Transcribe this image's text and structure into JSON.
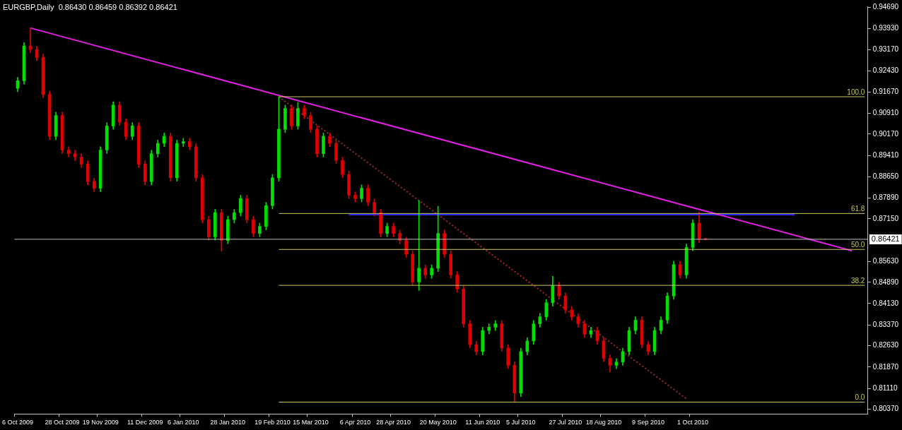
{
  "chart_data": {
    "type": "candlestick",
    "title": "EURGBP,Daily  0.86430 0.86459 0.86392 0.86421",
    "categories": [
      "6 Oct 2009",
      null,
      null,
      null,
      null,
      null,
      null,
      "28 Oct 2009",
      null,
      null,
      null,
      null,
      null,
      "19 Nov 2009",
      null,
      null,
      null,
      null,
      null,
      null,
      "11 Dec 2009",
      null,
      null,
      null,
      null,
      null,
      "6 Jan 2010",
      null,
      null,
      null,
      null,
      null,
      null,
      "28 Jan 2010",
      null,
      null,
      null,
      null,
      null,
      null,
      "19 Feb 2010",
      null,
      null,
      null,
      null,
      null,
      "15 Mar 2010",
      null,
      null,
      null,
      null,
      null,
      null,
      "6 Apr 2010",
      null,
      null,
      null,
      null,
      null,
      "28 Apr 2010",
      null,
      null,
      null,
      null,
      null,
      null,
      "20 May 2010",
      null,
      null,
      null,
      null,
      null,
      null,
      "11 Jun 2010",
      null,
      null,
      null,
      null,
      null,
      "5 Jul 2010",
      null,
      null,
      null,
      null,
      null,
      null,
      "27 Jul 2010",
      null,
      null,
      null,
      null,
      null,
      "18 Aug 2010",
      null,
      null,
      null,
      null,
      null,
      null,
      "9 Sep 2010",
      null,
      null,
      null,
      null,
      null,
      null,
      "1 Oct 2010",
      null,
      null,
      null,
      null,
      null,
      null,
      null,
      null,
      null,
      null,
      null,
      null,
      null,
      null,
      null,
      null,
      null,
      null,
      null,
      null,
      null,
      null,
      null,
      null,
      null,
      null,
      null
    ],
    "ylim": [
      0.802,
      0.9472
    ],
    "yticks": [
      {
        "value": 0.9469,
        "label": "0.94690"
      },
      {
        "value": 0.9393,
        "label": "0.93930"
      },
      {
        "value": 0.9317,
        "label": "0.93170"
      },
      {
        "value": 0.9243,
        "label": "0.92430"
      },
      {
        "value": 0.9167,
        "label": "0.91670"
      },
      {
        "value": 0.9091,
        "label": "0.90910"
      },
      {
        "value": 0.9017,
        "label": "0.90170"
      },
      {
        "value": 0.8941,
        "label": "0.89410"
      },
      {
        "value": 0.8865,
        "label": "0.88650"
      },
      {
        "value": 0.8789,
        "label": "0.87890"
      },
      {
        "value": 0.8715,
        "label": "0.87150"
      },
      {
        "value": 0.8563,
        "label": "0.85630"
      },
      {
        "value": 0.8489,
        "label": "0.84890"
      },
      {
        "value": 0.8413,
        "label": "0.84130"
      },
      {
        "value": 0.8337,
        "label": "0.83370"
      },
      {
        "value": 0.8263,
        "label": "0.82630"
      },
      {
        "value": 0.8187,
        "label": "0.81870"
      },
      {
        "value": 0.8111,
        "label": "0.81110"
      },
      {
        "value": 0.8037,
        "label": "0.80370"
      }
    ],
    "grid": false,
    "legend": false,
    "ref_lines": [
      {
        "axis": "y",
        "value": 0.86421,
        "label": "0.86421",
        "color": "#c0c0c0"
      }
    ],
    "series": [
      {
        "colors": [
          "#00e000",
          "#00e000",
          "#e00000",
          "#e00000",
          "#e00000",
          "#e00000",
          "#00e000",
          "#e00000",
          "#e00000",
          "#e00000",
          "#e00000",
          "#e00000",
          "#e00000",
          "#00e000",
          "#00e000",
          "#00e000",
          "#e00000",
          "#e00000",
          "#00e000",
          "#e00000",
          "#e00000",
          "#00e000",
          "#00e000",
          "#00e000",
          "#e00000",
          "#00e000",
          "#00e000",
          "#e00000",
          "#e00000",
          "#e00000",
          "#e00000",
          "#00e000",
          "#e00000",
          "#00e000",
          "#00e000",
          "#00e000",
          "#e00000",
          "#e00000",
          "#00e000",
          "#00e000",
          "#00e000",
          "#00e000",
          "#00e000",
          "#e00000",
          "#00e000",
          "#e00000",
          "#e00000",
          "#e00000",
          "#00e000",
          "#e00000",
          "#e00000",
          "#e00000",
          "#e00000",
          "#e00000",
          "#00e000",
          "#e00000",
          "#e00000",
          "#e00000",
          "#00e000",
          "#e00000",
          "#e00000",
          "#e00000",
          "#e00000",
          "#00e000",
          "#e00000",
          "#00e000",
          "#00e000",
          "#e00000",
          "#e00000",
          "#e00000",
          "#e00000",
          "#e00000",
          "#e00000",
          "#00e000",
          "#00e000",
          "#00e000",
          "#e00000",
          "#e00000",
          "#e00000",
          "#00e000",
          "#00e000",
          "#00e000",
          "#00e000",
          "#00e000",
          "#00e000",
          "#e00000",
          "#e00000",
          "#e00000",
          "#e00000",
          "#e00000",
          "#00e000",
          "#e00000",
          "#e00000",
          "#e00000",
          "#00e000",
          "#00e000",
          "#00e000",
          "#00e000",
          "#e00000",
          "#e00000",
          "#00e000",
          "#00e000",
          "#00e000",
          "#00e000",
          "#e00000",
          "#00e000",
          "#00e000",
          "#e00000",
          "#e00000",
          null,
          null,
          null,
          null,
          null,
          null,
          null,
          null,
          null,
          null,
          null,
          null,
          null,
          null,
          null,
          null,
          null,
          null,
          null,
          null,
          null,
          null,
          null,
          null,
          null
        ],
        "ohlc": [
          [
            0.918,
            0.9219,
            0.9168,
            0.9207
          ],
          [
            0.9207,
            0.9343,
            0.9195,
            0.9331
          ],
          [
            0.9331,
            0.9395,
            0.9306,
            0.9318
          ],
          [
            0.9318,
            0.933,
            0.9278,
            0.929
          ],
          [
            0.929,
            0.9302,
            0.9146,
            0.9158
          ],
          [
            0.9158,
            0.917,
            0.8997,
            0.9009
          ],
          [
            0.9009,
            0.9095,
            0.8997,
            0.9083
          ],
          [
            0.9083,
            0.9095,
            0.8948,
            0.896
          ],
          [
            0.896,
            0.8972,
            0.8935,
            0.8947
          ],
          [
            0.8947,
            0.8959,
            0.8923,
            0.8935
          ],
          [
            0.8935,
            0.8947,
            0.8898,
            0.891
          ],
          [
            0.891,
            0.8922,
            0.8836,
            0.8848
          ],
          [
            0.8848,
            0.886,
            0.8812,
            0.8824
          ],
          [
            0.8824,
            0.8972,
            0.8812,
            0.896
          ],
          [
            0.896,
            0.9058,
            0.8948,
            0.9046
          ],
          [
            0.9046,
            0.9132,
            0.9034,
            0.912
          ],
          [
            0.912,
            0.9132,
            0.9047,
            0.9059
          ],
          [
            0.9059,
            0.9071,
            0.8997,
            0.9009
          ],
          [
            0.9009,
            0.9058,
            0.8997,
            0.9046
          ],
          [
            0.9046,
            0.9058,
            0.8898,
            0.891
          ],
          [
            0.891,
            0.8922,
            0.8836,
            0.8848
          ],
          [
            0.8848,
            0.8959,
            0.8836,
            0.8947
          ],
          [
            0.8947,
            0.8996,
            0.8935,
            0.8984
          ],
          [
            0.8984,
            0.9021,
            0.8972,
            0.9009
          ],
          [
            0.9009,
            0.9021,
            0.8849,
            0.8861
          ],
          [
            0.8861,
            0.8996,
            0.8849,
            0.8984
          ],
          [
            0.8984,
            0.9002,
            0.8972,
            0.899
          ],
          [
            0.899,
            0.9002,
            0.896,
            0.8972
          ],
          [
            0.8972,
            0.8984,
            0.8849,
            0.8861
          ],
          [
            0.8861,
            0.8873,
            0.87,
            0.8712
          ],
          [
            0.8712,
            0.8724,
            0.8639,
            0.8651
          ],
          [
            0.8651,
            0.8749,
            0.8639,
            0.8737
          ],
          [
            0.8737,
            0.8749,
            0.86,
            0.8638
          ],
          [
            0.8638,
            0.8724,
            0.8626,
            0.8712
          ],
          [
            0.8712,
            0.8749,
            0.87,
            0.8737
          ],
          [
            0.8737,
            0.8799,
            0.8725,
            0.8787
          ],
          [
            0.8787,
            0.8799,
            0.87,
            0.8712
          ],
          [
            0.8712,
            0.8724,
            0.8651,
            0.8663
          ],
          [
            0.8663,
            0.87,
            0.8651,
            0.8688
          ],
          [
            0.8688,
            0.8774,
            0.8676,
            0.8762
          ],
          [
            0.8762,
            0.8873,
            0.875,
            0.8861
          ],
          [
            0.8861,
            0.915,
            0.8849,
            0.9034
          ],
          [
            0.9034,
            0.912,
            0.9022,
            0.9108
          ],
          [
            0.9108,
            0.912,
            0.9034,
            0.9046
          ],
          [
            0.9046,
            0.913,
            0.9034,
            0.9108
          ],
          [
            0.9108,
            0.912,
            0.9071,
            0.9083
          ],
          [
            0.9083,
            0.9095,
            0.9022,
            0.9034
          ],
          [
            0.9034,
            0.9046,
            0.8935,
            0.8947
          ],
          [
            0.8947,
            0.9021,
            0.8935,
            0.9009
          ],
          [
            0.9009,
            0.9021,
            0.8972,
            0.8984
          ],
          [
            0.8984,
            0.8996,
            0.8911,
            0.8923
          ],
          [
            0.8923,
            0.8935,
            0.8861,
            0.8873
          ],
          [
            0.8873,
            0.8885,
            0.8787,
            0.8799
          ],
          [
            0.8799,
            0.8811,
            0.8775,
            0.8787
          ],
          [
            0.8787,
            0.8836,
            0.8775,
            0.8824
          ],
          [
            0.8824,
            0.8836,
            0.8762,
            0.8774
          ],
          [
            0.8774,
            0.8786,
            0.8725,
            0.8737
          ],
          [
            0.8737,
            0.8749,
            0.8651,
            0.8663
          ],
          [
            0.8663,
            0.87,
            0.8651,
            0.8688
          ],
          [
            0.8688,
            0.87,
            0.8651,
            0.8663
          ],
          [
            0.8663,
            0.8675,
            0.8626,
            0.8638
          ],
          [
            0.8638,
            0.865,
            0.8577,
            0.8589
          ],
          [
            0.8589,
            0.8601,
            0.8478,
            0.849
          ],
          [
            0.849,
            0.878,
            0.846,
            0.8539
          ],
          [
            0.8539,
            0.8551,
            0.8503,
            0.8515
          ],
          [
            0.8515,
            0.8551,
            0.8503,
            0.8539
          ],
          [
            0.8539,
            0.876,
            0.8527,
            0.8663
          ],
          [
            0.8663,
            0.8675,
            0.8577,
            0.8589
          ],
          [
            0.8589,
            0.8601,
            0.8503,
            0.8515
          ],
          [
            0.8515,
            0.8527,
            0.8453,
            0.8465
          ],
          [
            0.8465,
            0.8477,
            0.8329,
            0.8341
          ],
          [
            0.8341,
            0.8353,
            0.8255,
            0.8267
          ],
          [
            0.8267,
            0.8279,
            0.823,
            0.8242
          ],
          [
            0.8242,
            0.8329,
            0.823,
            0.8317
          ],
          [
            0.8317,
            0.8341,
            0.8305,
            0.8329
          ],
          [
            0.8329,
            0.8353,
            0.8317,
            0.8341
          ],
          [
            0.8341,
            0.8353,
            0.8243,
            0.8255
          ],
          [
            0.8255,
            0.8267,
            0.8181,
            0.8193
          ],
          [
            0.8193,
            0.8205,
            0.8062,
            0.8094
          ],
          [
            0.8094,
            0.8254,
            0.8082,
            0.8242
          ],
          [
            0.8242,
            0.8292,
            0.823,
            0.828
          ],
          [
            0.828,
            0.8353,
            0.8268,
            0.8341
          ],
          [
            0.8341,
            0.8378,
            0.8329,
            0.8366
          ],
          [
            0.8366,
            0.8428,
            0.8354,
            0.8416
          ],
          [
            0.8416,
            0.851,
            0.8404,
            0.8477
          ],
          [
            0.8477,
            0.8489,
            0.8428,
            0.844
          ],
          [
            0.844,
            0.8452,
            0.8379,
            0.8391
          ],
          [
            0.8391,
            0.8403,
            0.8354,
            0.8366
          ],
          [
            0.8366,
            0.8378,
            0.8329,
            0.8341
          ],
          [
            0.8341,
            0.8353,
            0.8292,
            0.8304
          ],
          [
            0.8304,
            0.8329,
            0.8292,
            0.8317
          ],
          [
            0.8317,
            0.8329,
            0.8268,
            0.828
          ],
          [
            0.828,
            0.8292,
            0.8206,
            0.8218
          ],
          [
            0.8218,
            0.823,
            0.817,
            0.8193
          ],
          [
            0.8193,
            0.8217,
            0.8181,
            0.8205
          ],
          [
            0.8205,
            0.8254,
            0.8193,
            0.8242
          ],
          [
            0.8242,
            0.8329,
            0.823,
            0.8317
          ],
          [
            0.8317,
            0.8366,
            0.8305,
            0.8354
          ],
          [
            0.8354,
            0.8366,
            0.8255,
            0.8267
          ],
          [
            0.8267,
            0.8279,
            0.823,
            0.8242
          ],
          [
            0.8242,
            0.8329,
            0.823,
            0.8317
          ],
          [
            0.8317,
            0.8366,
            0.8305,
            0.8354
          ],
          [
            0.8354,
            0.8452,
            0.8342,
            0.844
          ],
          [
            0.844,
            0.8564,
            0.8428,
            0.8552
          ],
          [
            0.8552,
            0.8564,
            0.8503,
            0.8515
          ],
          [
            0.8515,
            0.8625,
            0.8503,
            0.8613
          ],
          [
            0.8613,
            0.8712,
            0.8601,
            0.87
          ],
          [
            0.87,
            0.874,
            0.863,
            0.8643
          ],
          [
            0.8643,
            0.86459,
            0.86392,
            0.86421
          ],
          null,
          null,
          null,
          null,
          null,
          null,
          null,
          null,
          null,
          null,
          null,
          null,
          null,
          null,
          null,
          null,
          null,
          null,
          null,
          null,
          null,
          null,
          null,
          null,
          null
        ]
      },
      {
        "type": "line",
        "color": "#e020e0",
        "values": [
          null,
          null,
          0.9395,
          null,
          null,
          null,
          null,
          null,
          null,
          null,
          null,
          null,
          null,
          null,
          null,
          null,
          null,
          null,
          null,
          null,
          null,
          null,
          null,
          null,
          null,
          null,
          null,
          null,
          null,
          null,
          null,
          null,
          null,
          null,
          null,
          null,
          null,
          null,
          null,
          null,
          null,
          null,
          null,
          null,
          null,
          null,
          null,
          null,
          null,
          null,
          null,
          null,
          null,
          null,
          null,
          null,
          null,
          null,
          null,
          null,
          null,
          null,
          null,
          null,
          null,
          null,
          null,
          null,
          null,
          null,
          null,
          null,
          null,
          null,
          null,
          null,
          null,
          null,
          null,
          null,
          null,
          null,
          null,
          null,
          null,
          null,
          null,
          null,
          null,
          null,
          null,
          null,
          null,
          null,
          null,
          null,
          null,
          null,
          null,
          null,
          null,
          null,
          null,
          null,
          null,
          null,
          null,
          null,
          null,
          null,
          null,
          null,
          null,
          null,
          null,
          null,
          null,
          null,
          null,
          null,
          null,
          null,
          null,
          null,
          null,
          null,
          null,
          null,
          null,
          null,
          null,
          0.8601,
          null,
          null
        ]
      },
      {
        "type": "line",
        "color": "#2a2aff",
        "values": [
          null,
          null,
          null,
          null,
          null,
          null,
          null,
          null,
          null,
          null,
          null,
          null,
          null,
          null,
          null,
          null,
          null,
          null,
          null,
          null,
          null,
          null,
          null,
          null,
          null,
          null,
          null,
          null,
          null,
          null,
          null,
          null,
          null,
          null,
          null,
          null,
          null,
          null,
          null,
          null,
          null,
          null,
          null,
          null,
          null,
          null,
          null,
          null,
          null,
          null,
          null,
          null,
          0.873,
          null,
          null,
          null,
          null,
          null,
          null,
          null,
          null,
          null,
          null,
          null,
          null,
          null,
          null,
          null,
          null,
          null,
          null,
          null,
          null,
          null,
          null,
          null,
          null,
          null,
          null,
          null,
          null,
          null,
          null,
          null,
          null,
          null,
          null,
          null,
          null,
          null,
          null,
          null,
          null,
          null,
          null,
          null,
          null,
          null,
          null,
          null,
          null,
          null,
          null,
          null,
          null,
          null,
          null,
          null,
          null,
          null,
          null,
          null,
          null,
          null,
          null,
          null,
          null,
          null,
          null,
          null,
          null,
          null,
          0.873,
          null,
          null,
          null,
          null,
          null,
          null,
          null,
          null,
          null,
          null,
          null
        ]
      },
      {
        "type": "line",
        "color": "#a02828",
        "line_style": "dotted",
        "values": [
          null,
          null,
          null,
          null,
          null,
          null,
          null,
          null,
          null,
          null,
          null,
          null,
          null,
          null,
          null,
          null,
          null,
          null,
          null,
          null,
          null,
          null,
          null,
          null,
          null,
          null,
          null,
          null,
          null,
          null,
          null,
          null,
          null,
          null,
          null,
          null,
          null,
          null,
          null,
          null,
          null,
          0.915,
          null,
          null,
          null,
          null,
          null,
          null,
          null,
          null,
          null,
          null,
          null,
          null,
          null,
          null,
          null,
          null,
          null,
          null,
          null,
          null,
          null,
          null,
          null,
          null,
          null,
          null,
          null,
          null,
          null,
          null,
          null,
          null,
          null,
          null,
          null,
          null,
          null,
          null,
          null,
          null,
          null,
          null,
          null,
          null,
          null,
          null,
          null,
          null,
          null,
          null,
          null,
          null,
          null,
          null,
          null,
          null,
          null,
          null,
          null,
          null,
          null,
          null,
          null,
          0.8074,
          null,
          null,
          null,
          null,
          null,
          null,
          null,
          null,
          null,
          null,
          null,
          null,
          null,
          null,
          null,
          null,
          null,
          null,
          null,
          null,
          null,
          null,
          null,
          null,
          null,
          null,
          null,
          null
        ]
      },
      {
        "type": "line",
        "name": "100.0",
        "color": "#c8c864",
        "values": [
          null,
          null,
          null,
          null,
          null,
          null,
          null,
          null,
          null,
          null,
          null,
          null,
          null,
          null,
          null,
          null,
          null,
          null,
          null,
          null,
          null,
          null,
          null,
          null,
          null,
          null,
          null,
          null,
          null,
          null,
          null,
          null,
          null,
          null,
          null,
          null,
          null,
          null,
          null,
          null,
          null,
          0.915,
          null,
          null,
          null,
          null,
          null,
          null,
          null,
          null,
          null,
          null,
          null,
          null,
          null,
          null,
          null,
          null,
          null,
          null,
          null,
          null,
          null,
          null,
          null,
          null,
          null,
          null,
          null,
          null,
          null,
          null,
          null,
          null,
          null,
          null,
          null,
          null,
          null,
          null,
          null,
          null,
          null,
          null,
          null,
          null,
          null,
          null,
          null,
          null,
          null,
          null,
          null,
          null,
          null,
          null,
          null,
          null,
          null,
          null,
          null,
          null,
          null,
          null,
          null,
          null,
          null,
          null,
          null,
          null,
          null,
          null,
          null,
          null,
          null,
          null,
          null,
          null,
          null,
          null,
          null,
          null,
          null,
          null,
          null,
          null,
          null,
          null,
          null,
          null,
          null,
          null,
          null,
          0.915
        ]
      },
      {
        "type": "line",
        "name": "61.8",
        "color": "#c8c864",
        "values": [
          null,
          null,
          null,
          null,
          null,
          null,
          null,
          null,
          null,
          null,
          null,
          null,
          null,
          null,
          null,
          null,
          null,
          null,
          null,
          null,
          null,
          null,
          null,
          null,
          null,
          null,
          null,
          null,
          null,
          null,
          null,
          null,
          null,
          null,
          null,
          null,
          null,
          null,
          null,
          null,
          null,
          0.8734,
          null,
          null,
          null,
          null,
          null,
          null,
          null,
          null,
          null,
          null,
          null,
          null,
          null,
          null,
          null,
          null,
          null,
          null,
          null,
          null,
          null,
          null,
          null,
          null,
          null,
          null,
          null,
          null,
          null,
          null,
          null,
          null,
          null,
          null,
          null,
          null,
          null,
          null,
          null,
          null,
          null,
          null,
          null,
          null,
          null,
          null,
          null,
          null,
          null,
          null,
          null,
          null,
          null,
          null,
          null,
          null,
          null,
          null,
          null,
          null,
          null,
          null,
          null,
          null,
          null,
          null,
          null,
          null,
          null,
          null,
          null,
          null,
          null,
          null,
          null,
          null,
          null,
          null,
          null,
          null,
          null,
          null,
          null,
          null,
          null,
          null,
          null,
          null,
          null,
          null,
          null,
          0.8734
        ]
      },
      {
        "type": "line",
        "name": "50.0",
        "color": "#c8c864",
        "values": [
          null,
          null,
          null,
          null,
          null,
          null,
          null,
          null,
          null,
          null,
          null,
          null,
          null,
          null,
          null,
          null,
          null,
          null,
          null,
          null,
          null,
          null,
          null,
          null,
          null,
          null,
          null,
          null,
          null,
          null,
          null,
          null,
          null,
          null,
          null,
          null,
          null,
          null,
          null,
          null,
          null,
          0.8606,
          null,
          null,
          null,
          null,
          null,
          null,
          null,
          null,
          null,
          null,
          null,
          null,
          null,
          null,
          null,
          null,
          null,
          null,
          null,
          null,
          null,
          null,
          null,
          null,
          null,
          null,
          null,
          null,
          null,
          null,
          null,
          null,
          null,
          null,
          null,
          null,
          null,
          null,
          null,
          null,
          null,
          null,
          null,
          null,
          null,
          null,
          null,
          null,
          null,
          null,
          null,
          null,
          null,
          null,
          null,
          null,
          null,
          null,
          null,
          null,
          null,
          null,
          null,
          null,
          null,
          null,
          null,
          null,
          null,
          null,
          null,
          null,
          null,
          null,
          null,
          null,
          null,
          null,
          null,
          null,
          null,
          null,
          null,
          null,
          null,
          null,
          null,
          null,
          null,
          null,
          null,
          0.8606
        ]
      },
      {
        "type": "line",
        "name": "38.2",
        "color": "#c8c864",
        "values": [
          null,
          null,
          null,
          null,
          null,
          null,
          null,
          null,
          null,
          null,
          null,
          null,
          null,
          null,
          null,
          null,
          null,
          null,
          null,
          null,
          null,
          null,
          null,
          null,
          null,
          null,
          null,
          null,
          null,
          null,
          null,
          null,
          null,
          null,
          null,
          null,
          null,
          null,
          null,
          null,
          null,
          0.8478,
          null,
          null,
          null,
          null,
          null,
          null,
          null,
          null,
          null,
          null,
          null,
          null,
          null,
          null,
          null,
          null,
          null,
          null,
          null,
          null,
          null,
          null,
          null,
          null,
          null,
          null,
          null,
          null,
          null,
          null,
          null,
          null,
          null,
          null,
          null,
          null,
          null,
          null,
          null,
          null,
          null,
          null,
          null,
          null,
          null,
          null,
          null,
          null,
          null,
          null,
          null,
          null,
          null,
          null,
          null,
          null,
          null,
          null,
          null,
          null,
          null,
          null,
          null,
          null,
          null,
          null,
          null,
          null,
          null,
          null,
          null,
          null,
          null,
          null,
          null,
          null,
          null,
          null,
          null,
          null,
          null,
          null,
          null,
          null,
          null,
          null,
          null,
          null,
          null,
          null,
          null,
          0.8478
        ]
      },
      {
        "type": "line",
        "name": "0.0",
        "color": "#c8c864",
        "values": [
          null,
          null,
          null,
          null,
          null,
          null,
          null,
          null,
          null,
          null,
          null,
          null,
          null,
          null,
          null,
          null,
          null,
          null,
          null,
          null,
          null,
          null,
          null,
          null,
          null,
          null,
          null,
          null,
          null,
          null,
          null,
          null,
          null,
          null,
          null,
          null,
          null,
          null,
          null,
          null,
          null,
          0.8062,
          null,
          null,
          null,
          null,
          null,
          null,
          null,
          null,
          null,
          null,
          null,
          null,
          null,
          null,
          null,
          null,
          null,
          null,
          null,
          null,
          null,
          null,
          null,
          null,
          null,
          null,
          null,
          null,
          null,
          null,
          null,
          null,
          null,
          null,
          null,
          null,
          null,
          null,
          null,
          null,
          null,
          null,
          null,
          null,
          null,
          null,
          null,
          null,
          null,
          null,
          null,
          null,
          null,
          null,
          null,
          null,
          null,
          null,
          null,
          null,
          null,
          null,
          null,
          null,
          null,
          null,
          null,
          null,
          null,
          null,
          null,
          null,
          null,
          null,
          null,
          null,
          null,
          null,
          null,
          null,
          null,
          null,
          null,
          null,
          null,
          null,
          null,
          null,
          null,
          null,
          null,
          0.8062
        ]
      }
    ]
  }
}
